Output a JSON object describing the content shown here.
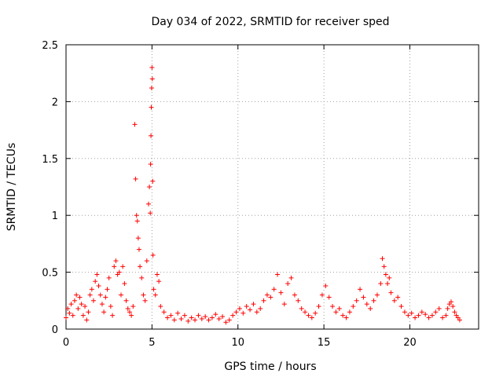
{
  "chart_data": {
    "type": "scatter",
    "title": "Day 034 of 2022, SRMTID for receiver sped",
    "xlabel": "GPS time / hours",
    "ylabel": "SRMTID / TECUs",
    "xlim": [
      0,
      24
    ],
    "ylim": [
      0,
      2.5
    ],
    "xticks": [
      0,
      5,
      10,
      15,
      20
    ],
    "xtick_labels": [
      "0",
      "5",
      "10",
      "15",
      "20"
    ],
    "yticks": [
      0,
      0.5,
      1,
      1.5,
      2,
      2.5
    ],
    "ytick_labels": [
      "0",
      "0.5",
      "1",
      "1.5",
      "2",
      "2.5"
    ],
    "grid": true,
    "marker": "+",
    "color": "#ff0000",
    "series": [
      {
        "name": "SRMTID",
        "x": [
          0.0,
          0.1,
          0.2,
          0.3,
          0.4,
          0.5,
          0.6,
          0.7,
          0.8,
          0.9,
          1.0,
          1.1,
          1.2,
          1.3,
          1.4,
          1.5,
          1.6,
          1.7,
          1.8,
          1.9,
          2.0,
          2.1,
          2.2,
          2.3,
          2.4,
          2.5,
          2.6,
          2.7,
          2.8,
          2.9,
          3.0,
          3.1,
          3.2,
          3.3,
          3.4,
          3.5,
          3.6,
          3.7,
          3.8,
          3.9,
          4.0,
          4.05,
          4.1,
          4.15,
          4.2,
          4.25,
          4.3,
          4.4,
          4.5,
          4.6,
          4.7,
          4.8,
          4.85,
          4.9,
          4.92,
          4.94,
          4.96,
          4.98,
          5.0,
          5.02,
          5.04,
          5.06,
          5.1,
          5.2,
          5.3,
          5.4,
          5.5,
          5.7,
          5.9,
          6.1,
          6.3,
          6.5,
          6.7,
          6.9,
          7.1,
          7.3,
          7.5,
          7.7,
          7.9,
          8.1,
          8.3,
          8.5,
          8.7,
          8.9,
          9.1,
          9.3,
          9.5,
          9.7,
          9.9,
          10.1,
          10.3,
          10.5,
          10.7,
          10.9,
          11.1,
          11.3,
          11.5,
          11.7,
          11.9,
          12.1,
          12.3,
          12.5,
          12.7,
          12.9,
          13.1,
          13.3,
          13.5,
          13.7,
          13.9,
          14.1,
          14.3,
          14.5,
          14.7,
          14.9,
          15.1,
          15.3,
          15.5,
          15.7,
          15.9,
          16.1,
          16.3,
          16.5,
          16.7,
          16.9,
          17.1,
          17.3,
          17.5,
          17.7,
          17.9,
          18.1,
          18.3,
          18.4,
          18.5,
          18.6,
          18.7,
          18.8,
          18.9,
          19.1,
          19.3,
          19.5,
          19.7,
          19.9,
          20.1,
          20.3,
          20.5,
          20.7,
          20.9,
          21.1,
          21.3,
          21.5,
          21.7,
          21.9,
          22.1,
          22.2,
          22.3,
          22.4,
          22.5,
          22.6,
          22.7,
          22.8,
          22.9
        ],
        "y": [
          0.1,
          0.18,
          0.14,
          0.22,
          0.12,
          0.25,
          0.3,
          0.18,
          0.28,
          0.22,
          0.12,
          0.2,
          0.08,
          0.15,
          0.3,
          0.35,
          0.25,
          0.42,
          0.48,
          0.38,
          0.3,
          0.22,
          0.15,
          0.28,
          0.35,
          0.45,
          0.2,
          0.12,
          0.55,
          0.6,
          0.48,
          0.5,
          0.3,
          0.55,
          0.4,
          0.25,
          0.18,
          0.15,
          0.12,
          0.2,
          1.8,
          1.32,
          1.0,
          0.95,
          0.8,
          0.7,
          0.55,
          0.45,
          0.3,
          0.25,
          0.6,
          1.1,
          1.25,
          1.02,
          1.45,
          1.7,
          1.95,
          2.12,
          2.3,
          2.2,
          1.3,
          0.65,
          0.35,
          0.3,
          0.48,
          0.42,
          0.2,
          0.15,
          0.1,
          0.12,
          0.08,
          0.14,
          0.09,
          0.12,
          0.07,
          0.1,
          0.08,
          0.12,
          0.09,
          0.11,
          0.08,
          0.1,
          0.13,
          0.09,
          0.11,
          0.06,
          0.08,
          0.12,
          0.15,
          0.18,
          0.14,
          0.2,
          0.17,
          0.22,
          0.15,
          0.18,
          0.25,
          0.3,
          0.28,
          0.35,
          0.48,
          0.32,
          0.22,
          0.4,
          0.45,
          0.3,
          0.25,
          0.18,
          0.15,
          0.12,
          0.1,
          0.14,
          0.2,
          0.3,
          0.38,
          0.28,
          0.2,
          0.15,
          0.18,
          0.12,
          0.1,
          0.15,
          0.2,
          0.25,
          0.35,
          0.28,
          0.22,
          0.18,
          0.25,
          0.3,
          0.4,
          0.62,
          0.55,
          0.48,
          0.4,
          0.45,
          0.32,
          0.25,
          0.28,
          0.2,
          0.15,
          0.12,
          0.14,
          0.1,
          0.12,
          0.15,
          0.13,
          0.1,
          0.12,
          0.15,
          0.18,
          0.1,
          0.12,
          0.18,
          0.22,
          0.24,
          0.2,
          0.15,
          0.12,
          0.1,
          0.08
        ]
      }
    ]
  }
}
